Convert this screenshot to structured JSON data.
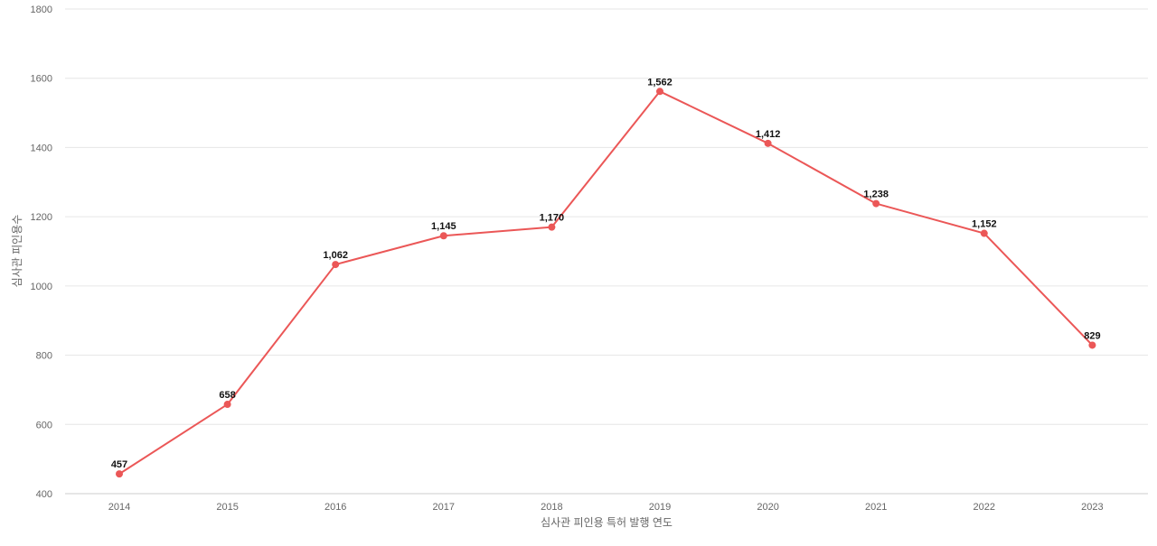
{
  "chart_data": {
    "type": "line",
    "title": "",
    "xlabel": "심사관 피인용 특허 발행 연도",
    "ylabel": "심사관 피인용수",
    "categories": [
      "2014",
      "2015",
      "2016",
      "2017",
      "2018",
      "2019",
      "2020",
      "2021",
      "2022",
      "2023"
    ],
    "series": [
      {
        "values": [
          457,
          658,
          1062,
          1145,
          1170,
          1562,
          1412,
          1238,
          1152,
          829
        ],
        "labels": [
          "457",
          "658",
          "1,062",
          "1,145",
          "1,170",
          "1,562",
          "1,412",
          "1,238",
          "1,152",
          "829"
        ],
        "color": "#eb5757"
      }
    ],
    "ylim": [
      400,
      1800
    ],
    "yticks": [
      "400",
      "600",
      "800",
      "1000",
      "1200",
      "1400",
      "1600",
      "1800"
    ],
    "grid": true,
    "legend": "none"
  }
}
